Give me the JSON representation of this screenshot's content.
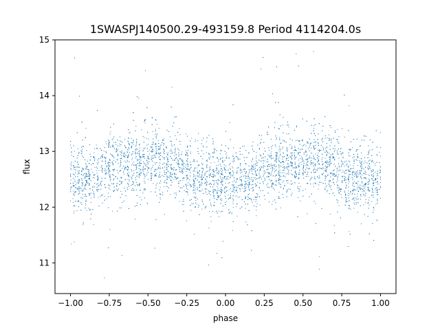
{
  "chart_data": {
    "type": "scatter",
    "title": "1SWASPJ140500.29-493159.8 Period 4114204.0s",
    "xlabel": "phase",
    "ylabel": "flux",
    "xlim": [
      -1.1,
      1.1
    ],
    "ylim": [
      10.45,
      15.0
    ],
    "xticks": [
      -1.0,
      -0.75,
      -0.5,
      -0.25,
      0.0,
      0.25,
      0.5,
      0.75,
      1.0
    ],
    "xtick_labels": [
      "−1.00",
      "−0.75",
      "−0.50",
      "−0.25",
      "0.00",
      "0.25",
      "0.50",
      "0.75",
      "1.00"
    ],
    "yticks": [
      11,
      12,
      13,
      14,
      15
    ],
    "ytick_labels": [
      "11",
      "12",
      "13",
      "14",
      "15"
    ],
    "grid": false,
    "marker_color": "#1f77b4",
    "series": [
      {
        "points_note_free": true,
        "phase_profile": [
          [
            -1.0,
            12.55
          ],
          [
            -0.95,
            12.45
          ],
          [
            -0.9,
            12.5
          ],
          [
            -0.85,
            12.45
          ],
          [
            -0.8,
            12.6
          ],
          [
            -0.75,
            12.75
          ],
          [
            -0.7,
            12.7
          ],
          [
            -0.65,
            12.75
          ],
          [
            -0.6,
            12.8
          ],
          [
            -0.55,
            12.75
          ],
          [
            -0.5,
            12.8
          ],
          [
            -0.45,
            12.9
          ],
          [
            -0.4,
            12.75
          ],
          [
            -0.35,
            12.8
          ],
          [
            -0.3,
            12.75
          ],
          [
            -0.25,
            12.6
          ],
          [
            -0.2,
            12.5
          ],
          [
            -0.15,
            12.55
          ],
          [
            -0.1,
            12.5
          ],
          [
            -0.05,
            12.5
          ],
          [
            0.0,
            12.5
          ],
          [
            0.05,
            12.45
          ],
          [
            0.1,
            12.5
          ],
          [
            0.15,
            12.45
          ],
          [
            0.2,
            12.5
          ],
          [
            0.25,
            12.75
          ],
          [
            0.3,
            12.7
          ],
          [
            0.35,
            12.75
          ],
          [
            0.4,
            12.8
          ],
          [
            0.45,
            12.75
          ],
          [
            0.5,
            12.8
          ],
          [
            0.55,
            12.9
          ],
          [
            0.6,
            12.75
          ],
          [
            0.65,
            12.8
          ],
          [
            0.7,
            12.75
          ],
          [
            0.75,
            12.6
          ],
          [
            0.8,
            12.5
          ],
          [
            0.85,
            12.55
          ],
          [
            0.9,
            12.5
          ],
          [
            0.95,
            12.5
          ],
          [
            1.0,
            12.5
          ]
        ],
        "scatter_sigma": 0.3
      }
    ]
  }
}
